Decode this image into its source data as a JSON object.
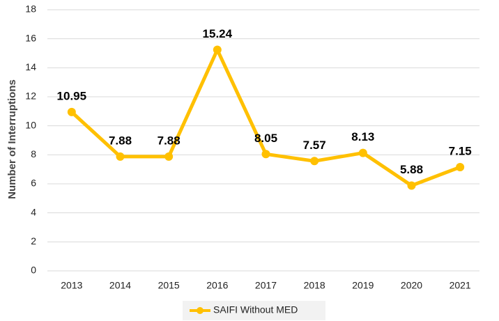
{
  "chart_data": {
    "type": "line",
    "y_label": "Number of Interruptions",
    "categories": [
      "2013",
      "2014",
      "2015",
      "2016",
      "2017",
      "2018",
      "2019",
      "2020",
      "2021"
    ],
    "series": [
      {
        "name": "SAIFI Without MED",
        "color": "#FFC000",
        "values": [
          10.95,
          7.88,
          7.88,
          15.24,
          8.05,
          7.57,
          8.13,
          5.88,
          7.15
        ]
      }
    ],
    "ylim": [
      0,
      18
    ],
    "yticks": [
      0,
      2,
      4,
      6,
      8,
      10,
      12,
      14,
      16,
      18
    ],
    "grid": true,
    "legend": "bottom"
  }
}
